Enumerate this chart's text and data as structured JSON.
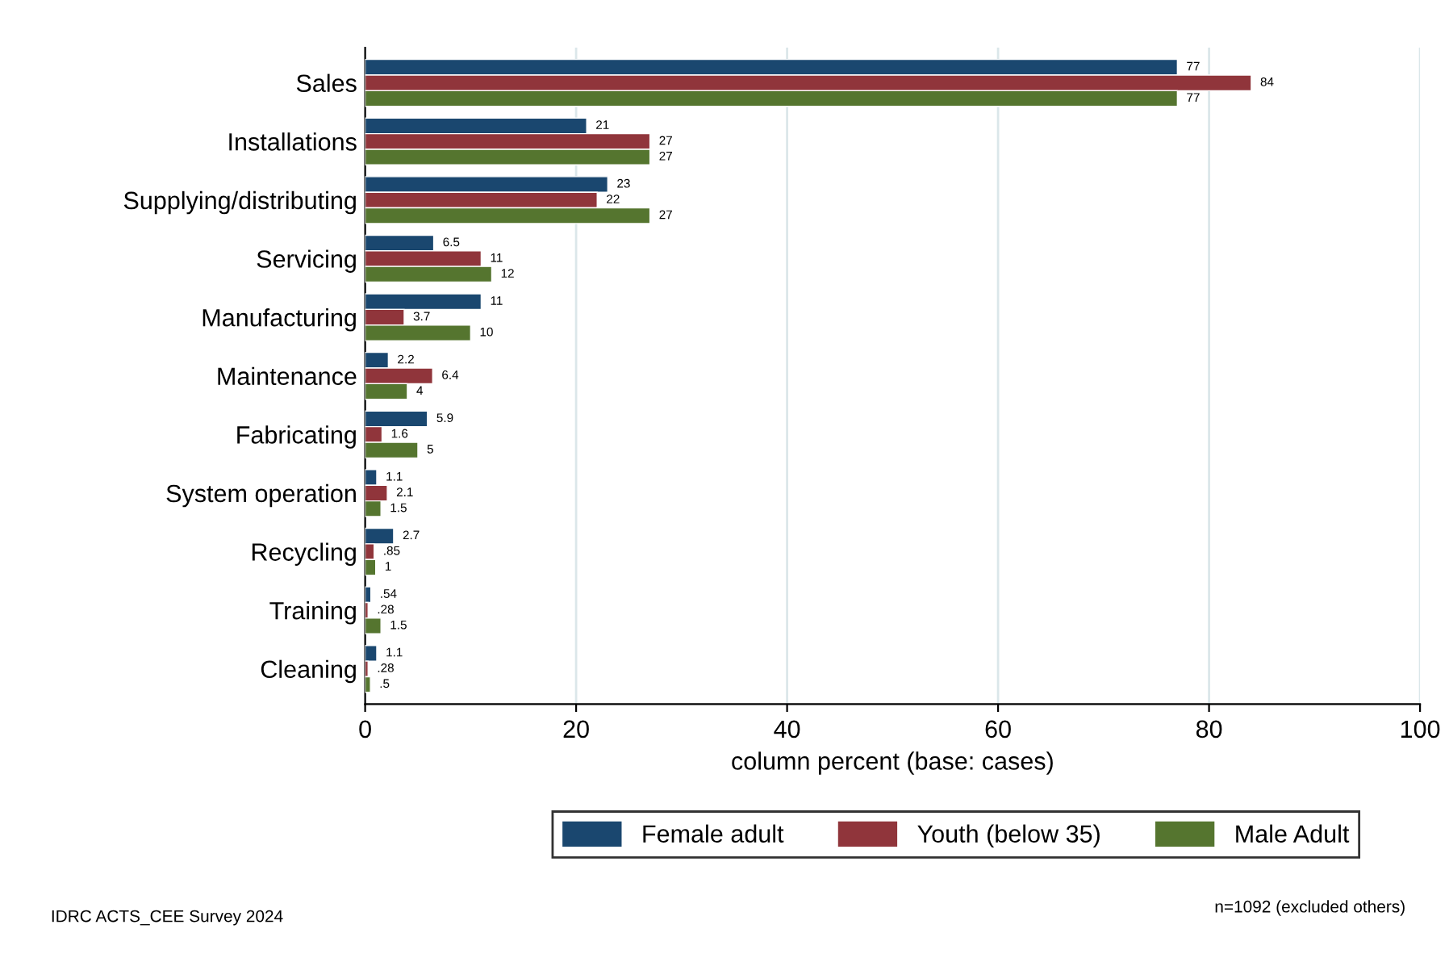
{
  "chart_data": {
    "type": "bar",
    "orientation": "horizontal",
    "xlabel": "column percent (base: cases)",
    "categories": [
      "Sales",
      "Installations",
      "Supplying/distributing",
      "Servicing",
      "Manufacturing",
      "Maintenance",
      "Fabricating",
      "System operation",
      "Recycling",
      "Training",
      "Cleaning"
    ],
    "series": [
      {
        "name": "Female adult",
        "color": "#1a476f",
        "values": [
          77,
          21,
          23,
          6.5,
          11,
          2.2,
          5.9,
          1.1,
          2.7,
          0.54,
          1.1
        ],
        "value_labels": [
          "77",
          "21",
          "23",
          "6.5",
          "11",
          "2.2",
          "5.9",
          "1.1",
          "2.7",
          ".54",
          "1.1"
        ]
      },
      {
        "name": "Youth (below 35)",
        "color": "#90353b",
        "values": [
          84,
          27,
          22,
          11,
          3.7,
          6.4,
          1.6,
          2.1,
          0.85,
          0.28,
          0.28
        ],
        "value_labels": [
          "84",
          "27",
          "22",
          "11",
          "3.7",
          "6.4",
          "1.6",
          "2.1",
          ".85",
          ".28",
          ".28"
        ]
      },
      {
        "name": "Male Adult",
        "color": "#55752f",
        "values": [
          77,
          27,
          27,
          12,
          10,
          4,
          5,
          1.5,
          1,
          1.5,
          0.5
        ],
        "value_labels": [
          "77",
          "27",
          "27",
          "12",
          "10",
          "4",
          "5",
          "1.5",
          "1",
          "1.5",
          ".5"
        ]
      }
    ],
    "xlim": [
      0,
      100
    ],
    "xticks": [
      0,
      20,
      40,
      60,
      80,
      100
    ],
    "grid": "x",
    "legend": "bottom",
    "annotations": [
      "IDRC ACTS_CEE Survey 2024",
      "n=1092 (excluded others)"
    ]
  }
}
